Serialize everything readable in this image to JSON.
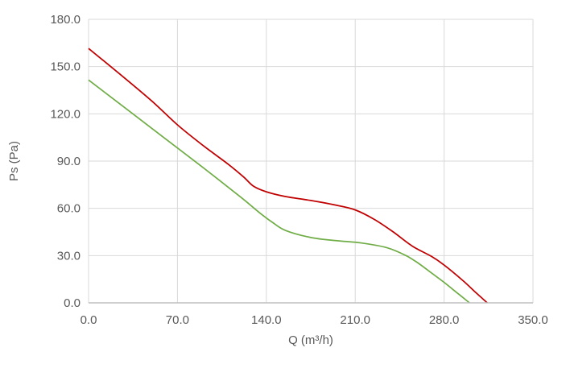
{
  "chart_data": {
    "type": "line",
    "title": "",
    "xlabel": "Q (m³/h)",
    "ylabel": "Ps (Pa)",
    "xlim": [
      0,
      350
    ],
    "ylim": [
      0,
      180
    ],
    "x_ticks": [
      "0.0",
      "70.0",
      "140.0",
      "210.0",
      "280.0",
      "350.0"
    ],
    "y_ticks": [
      "0.0",
      "30.0",
      "60.0",
      "90.0",
      "120.0",
      "150.0",
      "180.0"
    ],
    "grid": true,
    "legend": "none",
    "series": [
      {
        "color": "#C00000",
        "points": [
          [
            0,
            161.5
          ],
          [
            25,
            145
          ],
          [
            50,
            128
          ],
          [
            70,
            113
          ],
          [
            90,
            100
          ],
          [
            110,
            88
          ],
          [
            122,
            80
          ],
          [
            130,
            74
          ],
          [
            140,
            70.5
          ],
          [
            155,
            67.5
          ],
          [
            175,
            65
          ],
          [
            195,
            62
          ],
          [
            210,
            59
          ],
          [
            225,
            53
          ],
          [
            240,
            45
          ],
          [
            255,
            36
          ],
          [
            270,
            29.5
          ],
          [
            280,
            24
          ],
          [
            295,
            14
          ],
          [
            305,
            6.5
          ],
          [
            314,
            0
          ]
        ]
      },
      {
        "color": "#70AD47",
        "points": [
          [
            0,
            141.5
          ],
          [
            30,
            123
          ],
          [
            60,
            104.5
          ],
          [
            90,
            86
          ],
          [
            120,
            67
          ],
          [
            135,
            57
          ],
          [
            145,
            51
          ],
          [
            155,
            46
          ],
          [
            175,
            41.5
          ],
          [
            195,
            39.5
          ],
          [
            215,
            38
          ],
          [
            235,
            35
          ],
          [
            250,
            30
          ],
          [
            260,
            25
          ],
          [
            270,
            19
          ],
          [
            280,
            13
          ],
          [
            290,
            6.5
          ],
          [
            300,
            0
          ]
        ]
      }
    ]
  }
}
